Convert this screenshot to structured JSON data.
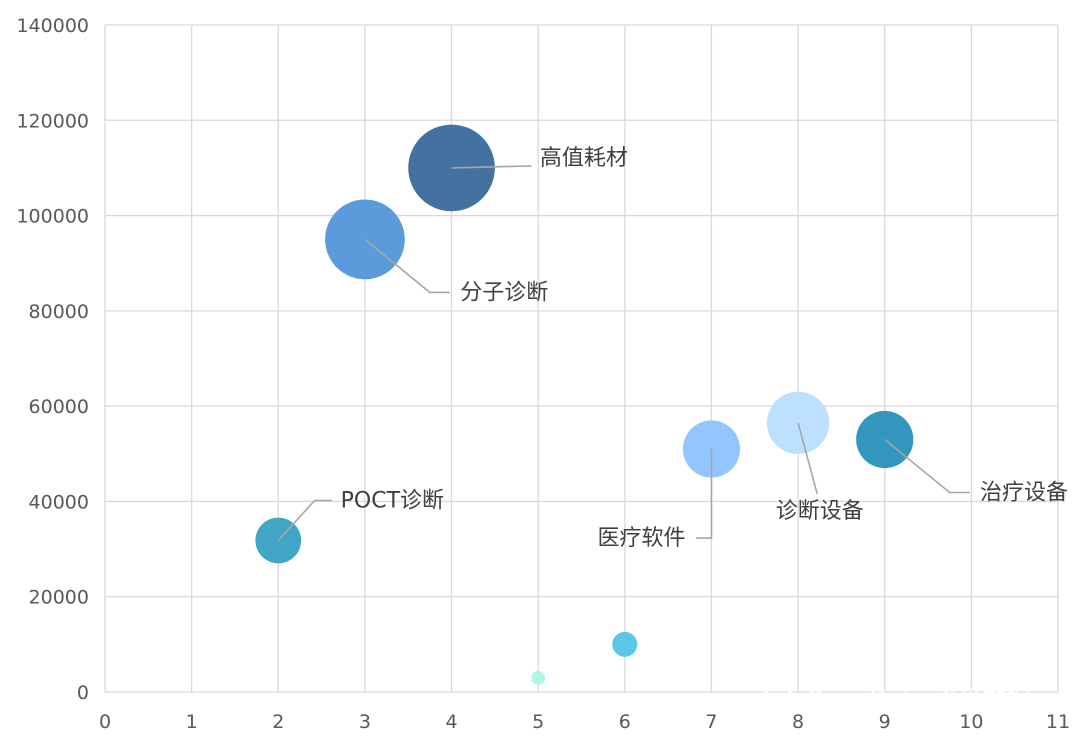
{
  "chart_data": {
    "type": "bubble",
    "xlim": [
      0,
      11
    ],
    "ylim": [
      0,
      140000
    ],
    "x_ticks": [
      "0",
      "1",
      "2",
      "3",
      "4",
      "5",
      "6",
      "7",
      "8",
      "9",
      "10",
      "11"
    ],
    "y_ticks": [
      "0",
      "20000",
      "40000",
      "60000",
      "80000",
      "100000",
      "120000",
      "140000"
    ],
    "grid": true,
    "points": [
      {
        "label": "POCT诊断",
        "x": 2,
        "y": 31800,
        "size": 0.264,
        "color": "#41A5C6",
        "label_pos": "upper-right"
      },
      {
        "label": "分子诊断",
        "x": 3,
        "y": 95000,
        "size": 0.46,
        "color": "#5B9BDB",
        "label_pos": "lower-right"
      },
      {
        "label": "高值耗材",
        "x": 4,
        "y": 110000,
        "size": 0.5,
        "color": "#4472A0",
        "label_pos": "right"
      },
      {
        "label": "",
        "x": 5,
        "y": 3000,
        "size": 0.08,
        "color": "#B2F5E5",
        "label_pos": ""
      },
      {
        "label": "",
        "x": 6,
        "y": 10000,
        "size": 0.144,
        "color": "#5BC6E5",
        "label_pos": ""
      },
      {
        "label": "医疗软件",
        "x": 7,
        "y": 51000,
        "size": 0.33,
        "color": "#92C6FD",
        "label_pos": "lower-left"
      },
      {
        "label": "诊断设备",
        "x": 8,
        "y": 56500,
        "size": 0.36,
        "color": "#BEE0FF",
        "label_pos": "below"
      },
      {
        "label": "治疗设备",
        "x": 9,
        "y": 53000,
        "size": 0.33,
        "color": "#3396BE",
        "label_pos": "lower-right"
      }
    ]
  },
  "watermark": {
    "text": "RimeData 来觅数据",
    "icon": "wechat-icon"
  }
}
